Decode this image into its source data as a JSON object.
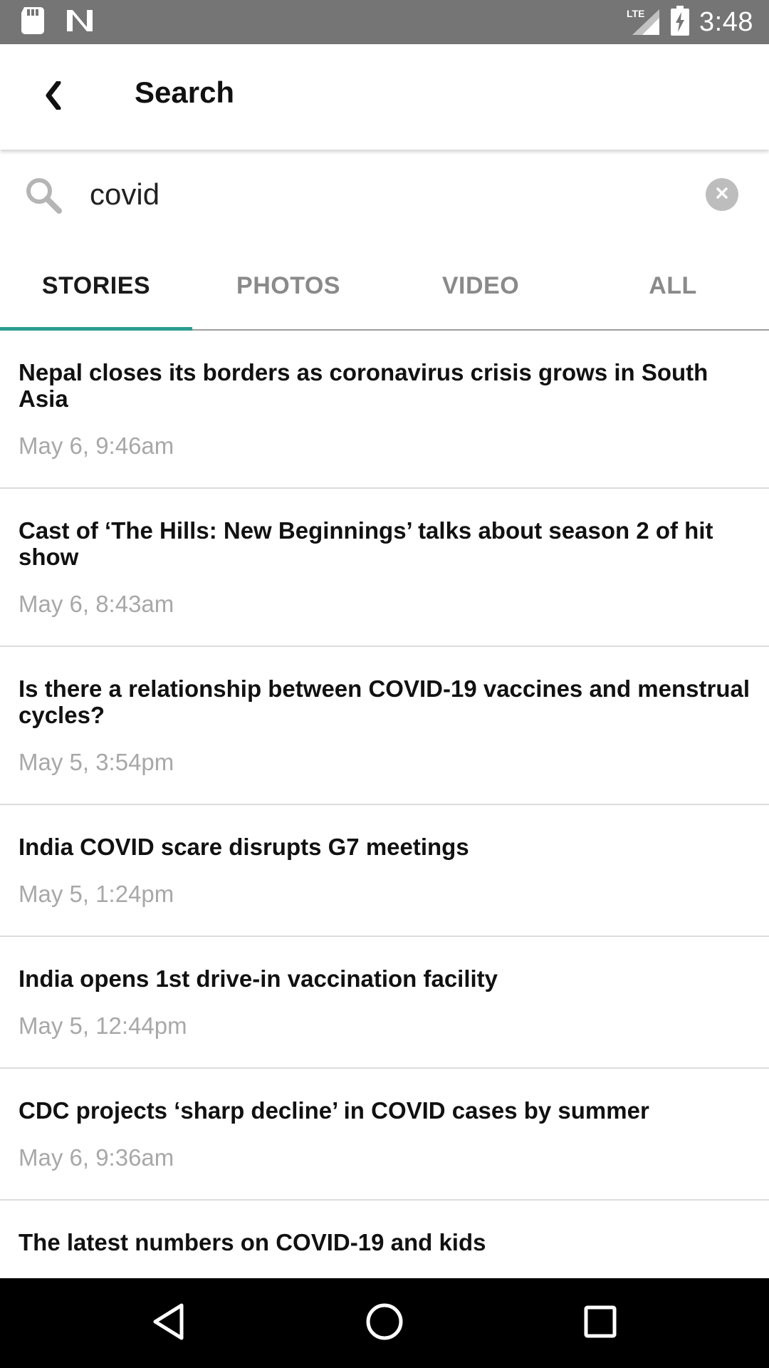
{
  "status_bar": {
    "time": "3:48",
    "network": "LTE",
    "icons": [
      "sd-card-icon",
      "n-notification-icon",
      "signal-icon",
      "battery-charging-icon"
    ]
  },
  "app_bar": {
    "title": "Search",
    "back_icon": "chevron-left-icon"
  },
  "search": {
    "value": "covid",
    "icon": "search-icon",
    "clear_icon": "clear-icon"
  },
  "tabs": [
    {
      "label": "STORIES",
      "active": true
    },
    {
      "label": "PHOTOS",
      "active": false
    },
    {
      "label": "VIDEO",
      "active": false
    },
    {
      "label": "ALL",
      "active": false
    }
  ],
  "stories": [
    {
      "title": "Nepal closes its borders as coronavirus crisis grows in South Asia",
      "time": "May 6, 9:46am"
    },
    {
      "title": "Cast of ‘The Hills: New Beginnings’ talks about season 2 of hit show",
      "time": "May 6, 8:43am"
    },
    {
      "title": "Is there a relationship between COVID-19 vaccines and menstrual cycles?",
      "time": "May 5, 3:54pm"
    },
    {
      "title": "India COVID scare disrupts G7 meetings",
      "time": "May 5, 1:24pm"
    },
    {
      "title": "India opens 1st drive-in vaccination facility",
      "time": "May 5, 12:44pm"
    },
    {
      "title": "CDC projects ‘sharp decline’ in COVID cases by summer",
      "time": "May 6, 9:36am"
    },
    {
      "title": "The latest numbers on COVID-19 and kids",
      "time": ""
    }
  ],
  "nav_bar": {
    "buttons": [
      "back-triangle-icon",
      "home-circle-icon",
      "recents-square-icon"
    ]
  },
  "colors": {
    "status_bar": "#757575",
    "accent": "#2a9d8f",
    "tab_inactive": "#8a8a8a",
    "timestamp": "#a8a8a8",
    "divider": "#dcdcdc",
    "nav_bar": "#000000"
  }
}
